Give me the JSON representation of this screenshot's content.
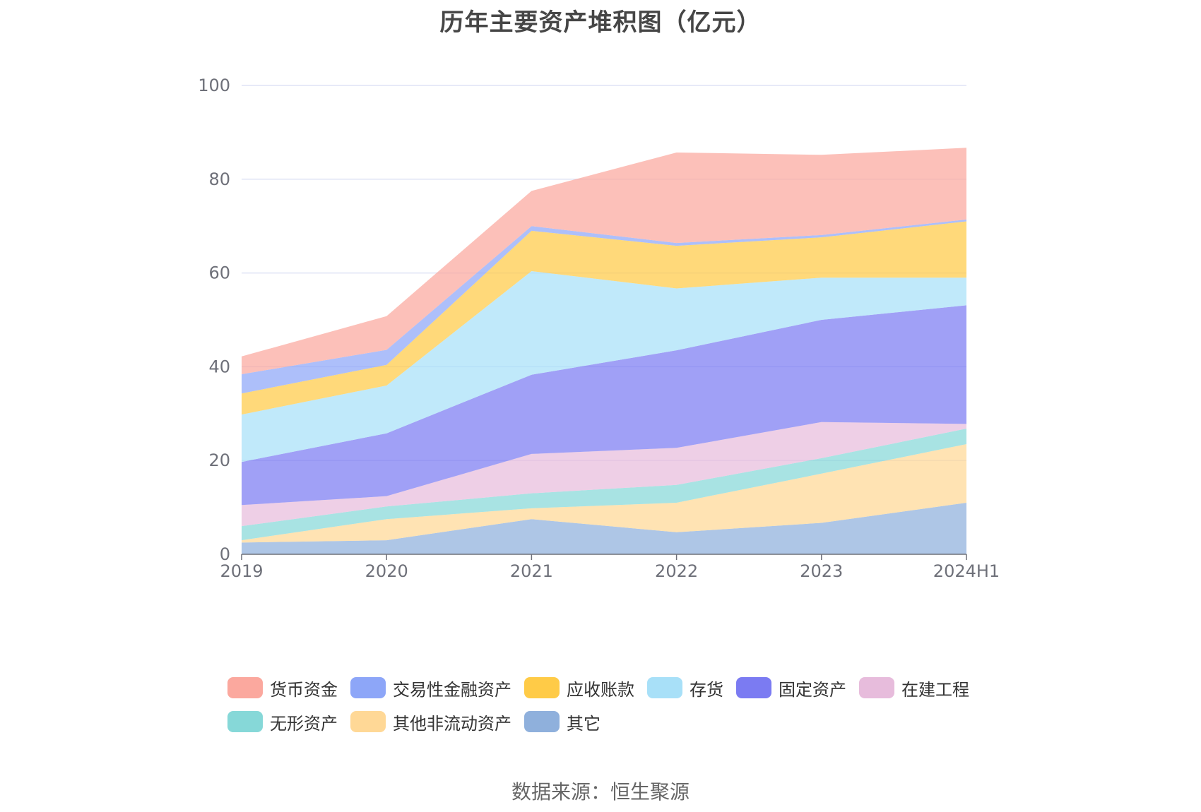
{
  "chart_data": {
    "type": "area",
    "stacked": true,
    "title": "历年主要资产堆积图（亿元）",
    "x": [
      "2019",
      "2020",
      "2021",
      "2022",
      "2023",
      "2024H1"
    ],
    "ylim": [
      0,
      100
    ],
    "yticks": [
      0,
      20,
      40,
      60,
      80,
      100
    ],
    "grid": true,
    "legend_position": "bottom",
    "series": [
      {
        "name": "其它",
        "color": "#8fb0dc",
        "values": [
          2.5,
          3.0,
          7.5,
          4.7,
          6.7,
          11.0
        ]
      },
      {
        "name": "其他非流动资产",
        "color": "#ffd896",
        "values": [
          0.5,
          4.5,
          2.3,
          6.3,
          10.5,
          12.5
        ]
      },
      {
        "name": "无形资产",
        "color": "#86d8d8",
        "values": [
          3.0,
          2.7,
          3.2,
          3.8,
          3.3,
          3.3
        ]
      },
      {
        "name": "在建工程",
        "color": "#e7bcdc",
        "values": [
          4.5,
          2.2,
          8.4,
          7.9,
          7.7,
          1.0
        ]
      },
      {
        "name": "固定资产",
        "color": "#7b7bf2",
        "values": [
          9.2,
          13.4,
          16.9,
          20.8,
          21.8,
          25.3
        ]
      },
      {
        "name": "存货",
        "color": "#a8e0f8",
        "values": [
          10.1,
          10.2,
          22.1,
          13.2,
          9.0,
          5.9
        ]
      },
      {
        "name": "应收账款",
        "color": "#ffcb47",
        "values": [
          4.5,
          4.4,
          8.6,
          9.1,
          8.6,
          12.0
        ]
      },
      {
        "name": "交易性金融资产",
        "color": "#8da6f8",
        "values": [
          4.1,
          3.2,
          1.0,
          0.6,
          0.5,
          0.4
        ]
      },
      {
        "name": "货币资金",
        "color": "#fba89e",
        "values": [
          3.8,
          7.2,
          7.5,
          19.3,
          17.1,
          15.3
        ]
      }
    ]
  },
  "legend": {
    "row1": [
      {
        "label": "货币资金",
        "color": "#fba89e"
      },
      {
        "label": "交易性金融资产",
        "color": "#8da6f8"
      },
      {
        "label": "应收账款",
        "color": "#ffcb47"
      },
      {
        "label": "存货",
        "color": "#a8e0f8"
      },
      {
        "label": "固定资产",
        "color": "#7b7bf2"
      },
      {
        "label": "在建工程",
        "color": "#e7bcdc"
      }
    ],
    "row2": [
      {
        "label": "无形资产",
        "color": "#86d8d8"
      },
      {
        "label": "其他非流动资产",
        "color": "#ffd896"
      },
      {
        "label": "其它",
        "color": "#8fb0dc"
      }
    ]
  },
  "source": "数据来源：恒生聚源"
}
